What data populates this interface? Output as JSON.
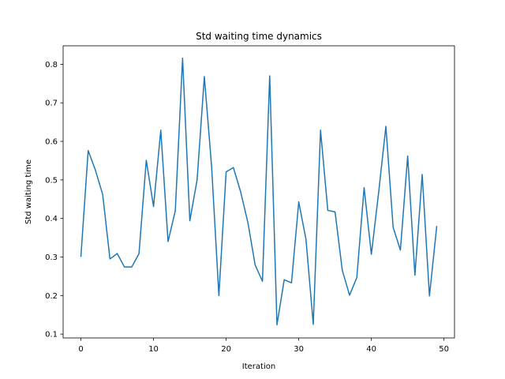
{
  "chart_data": {
    "type": "line",
    "title": "Std waiting time dynamics",
    "xlabel": "Iteration",
    "ylabel": "Std waiting time",
    "xlim": [
      -2.45,
      51.45
    ],
    "ylim": [
      0.09,
      0.848
    ],
    "xticks": [
      0,
      10,
      20,
      30,
      40,
      50
    ],
    "yticks": [
      0.1,
      0.2,
      0.3,
      0.4,
      0.5,
      0.6,
      0.7,
      0.8
    ],
    "grid": false,
    "color": "#1f77b4",
    "series": [
      {
        "x": [
          0,
          1,
          2,
          3,
          4,
          5,
          6,
          7,
          8,
          9,
          10,
          11,
          12,
          13,
          14,
          15,
          16,
          17,
          18,
          19,
          20,
          21,
          22,
          23,
          24,
          25,
          26,
          27,
          28,
          29,
          30,
          31,
          32,
          33,
          34,
          35,
          36,
          37,
          38,
          39,
          40,
          41,
          42,
          43,
          44,
          45,
          46,
          47,
          48,
          49
        ],
        "values": [
          0.302,
          0.576,
          0.525,
          0.462,
          0.295,
          0.309,
          0.274,
          0.274,
          0.309,
          0.551,
          0.431,
          0.629,
          0.34,
          0.42,
          0.816,
          0.394,
          0.5,
          0.768,
          0.534,
          0.2,
          0.521,
          0.532,
          0.469,
          0.389,
          0.279,
          0.237,
          0.77,
          0.124,
          0.241,
          0.233,
          0.443,
          0.345,
          0.125,
          0.629,
          0.421,
          0.417,
          0.265,
          0.201,
          0.247,
          0.48,
          0.307,
          0.467,
          0.639,
          0.377,
          0.318,
          0.562,
          0.253,
          0.514,
          0.199,
          0.379
        ]
      }
    ]
  }
}
